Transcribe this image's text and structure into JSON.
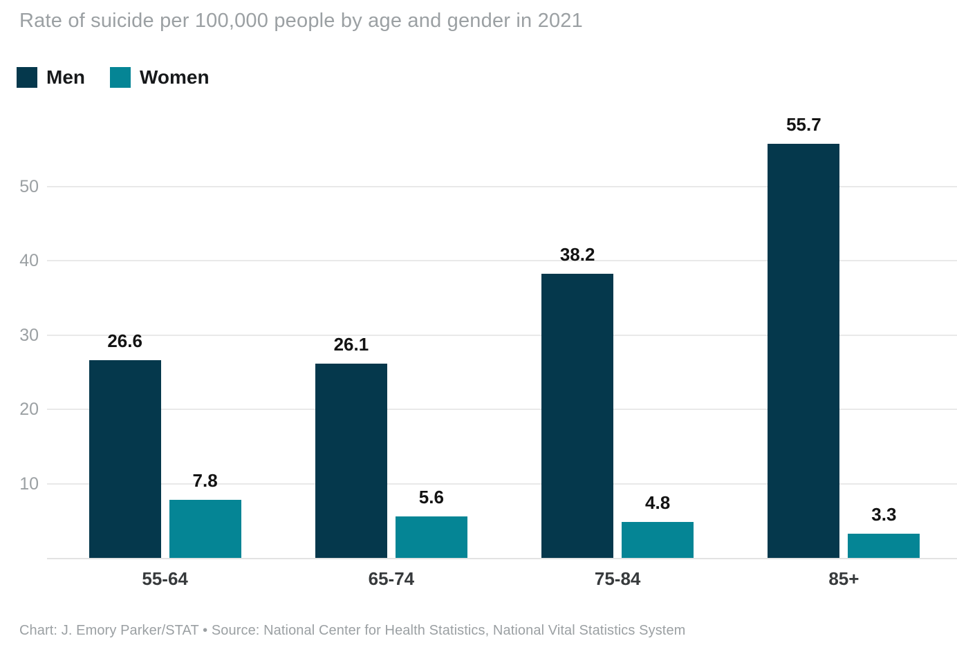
{
  "title": "Rate of suicide per 100,000 people by age and gender in 2021",
  "legend": {
    "items": [
      {
        "label": "Men",
        "color": "#05384C"
      },
      {
        "label": "Women",
        "color": "#058595"
      }
    ]
  },
  "chart_data": {
    "type": "bar",
    "title": "Rate of suicide per 100,000 people by age and gender in 2021",
    "categories": [
      "55-64",
      "65-74",
      "75-84",
      "85+"
    ],
    "series": [
      {
        "name": "Men",
        "color": "#05384C",
        "values": [
          26.6,
          26.1,
          38.2,
          55.7
        ]
      },
      {
        "name": "Women",
        "color": "#058595",
        "values": [
          7.8,
          5.6,
          4.8,
          3.3
        ]
      }
    ],
    "yticks": [
      10,
      20,
      30,
      40,
      50
    ],
    "ylim": [
      0,
      60
    ],
    "xlabel": "",
    "ylabel": "",
    "grid": "horizontal",
    "legend_position": "top-left",
    "value_labels_shown": true
  },
  "footer": {
    "text": "Chart: J. Emory Parker/STAT • Source: National Center for Health Statistics, National Vital Statistics System"
  },
  "colors": {
    "men": "#05384C",
    "women": "#058595",
    "gridline": "#e9e9e9",
    "baseline": "#e2e2e2",
    "muted_text": "#9ba0a3",
    "category_text": "#373a3c",
    "value_text": "#131313",
    "legend_text": "#17191b",
    "background": "#ffffff"
  }
}
